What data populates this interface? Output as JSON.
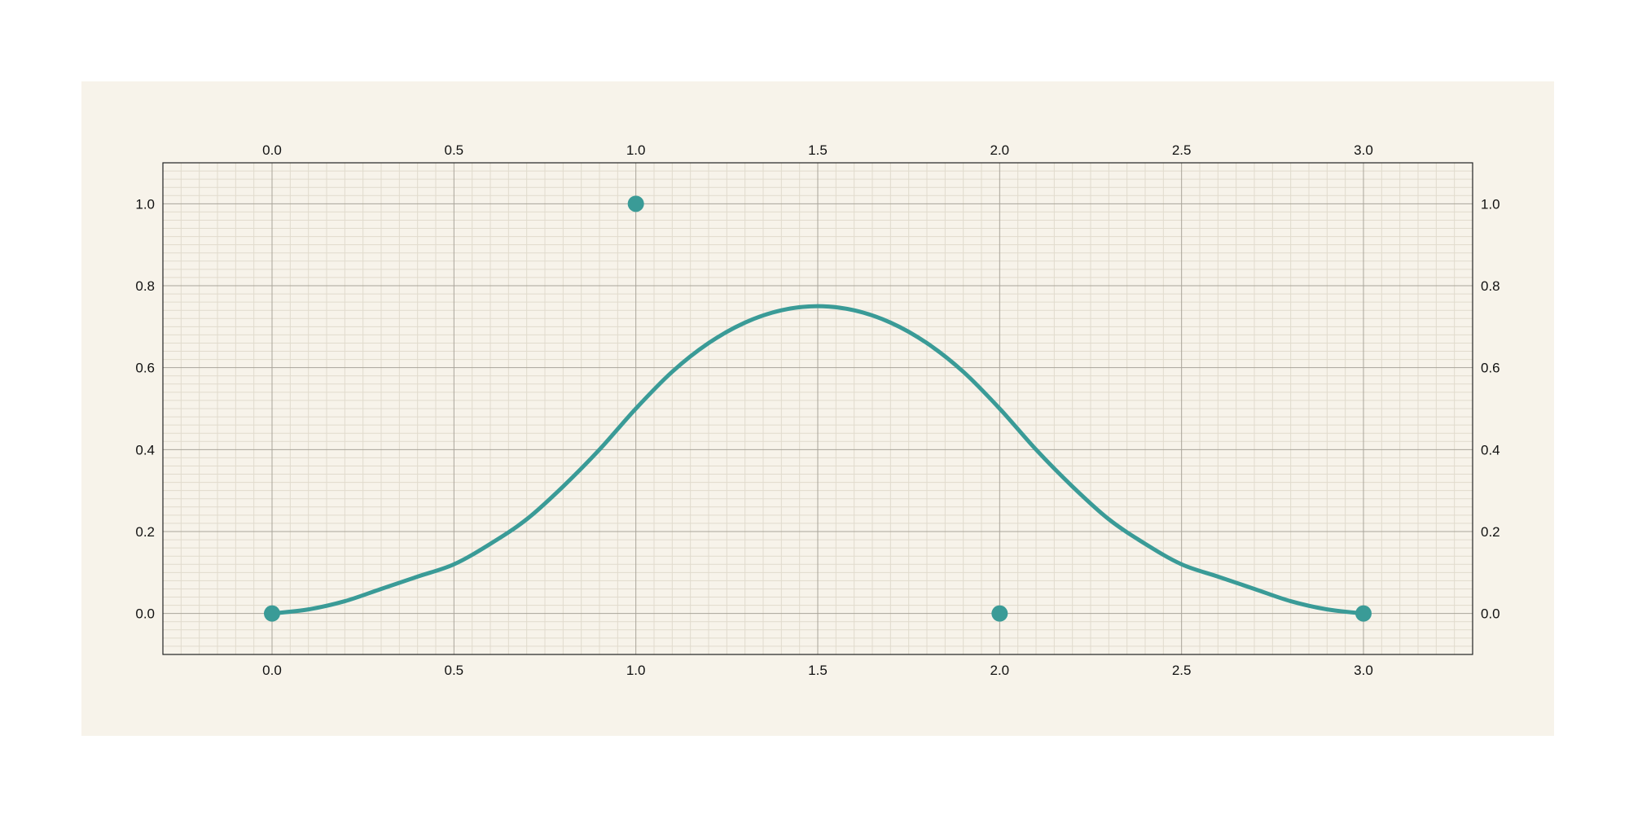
{
  "colors": {
    "background": "#f7f3ea",
    "frame": "#222222",
    "grid_major": "#a9a49a",
    "grid_minor": "#e1dbcd",
    "curve": "#3a9b97",
    "points": "#3a9b97"
  },
  "chart_data": {
    "type": "line",
    "title": "",
    "xlabel": "",
    "ylabel": "",
    "xlim": [
      -0.3,
      3.3
    ],
    "ylim": [
      -0.1,
      1.1
    ],
    "x_ticks": [
      "0.0",
      "0.5",
      "1.0",
      "1.5",
      "2.0",
      "2.5",
      "3.0"
    ],
    "y_ticks": [
      "0.0",
      "0.2",
      "0.4",
      "0.6",
      "0.8",
      "1.0"
    ],
    "axes_labeled": [
      "bottom",
      "top",
      "left",
      "right"
    ],
    "grid": true,
    "minor_grid": true,
    "legend": "none",
    "series": [
      {
        "type": "line",
        "x": [
          0.0,
          0.1,
          0.2,
          0.3,
          0.4,
          0.5,
          0.6,
          0.7,
          0.8,
          0.9,
          1.0,
          1.1,
          1.2,
          1.3,
          1.4,
          1.5,
          1.6,
          1.7,
          1.8,
          1.9,
          2.0,
          2.1,
          2.2,
          2.3,
          2.4,
          2.5,
          2.6,
          2.7,
          2.8,
          2.9,
          3.0
        ],
        "y": [
          0.0,
          0.01,
          0.03,
          0.06,
          0.09,
          0.12,
          0.17,
          0.23,
          0.31,
          0.4,
          0.5,
          0.59,
          0.66,
          0.71,
          0.74,
          0.75,
          0.74,
          0.71,
          0.66,
          0.59,
          0.5,
          0.4,
          0.31,
          0.23,
          0.17,
          0.12,
          0.09,
          0.06,
          0.03,
          0.01,
          0.0
        ]
      },
      {
        "type": "scatter",
        "x": [
          0.0,
          1.0,
          2.0,
          3.0
        ],
        "y": [
          0.0,
          1.0,
          0.0,
          0.0
        ]
      }
    ]
  }
}
